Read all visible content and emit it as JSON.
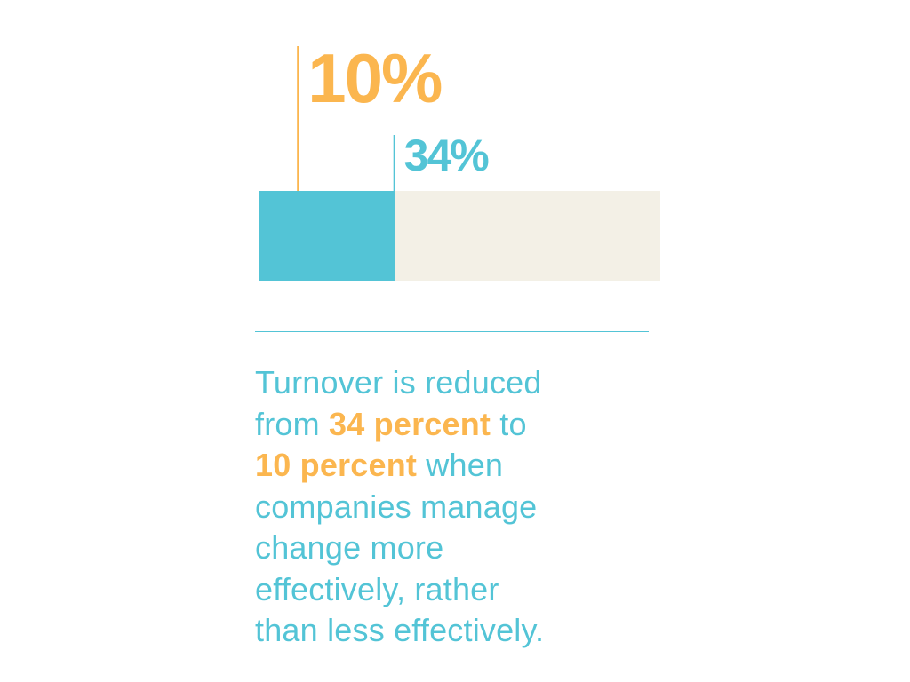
{
  "colors": {
    "orange": "#fbb64f",
    "teal": "#53c4d6",
    "track": "#f3f0e6",
    "background": "#ffffff"
  },
  "chart_data": {
    "type": "bar",
    "orientation": "horizontal-stacked",
    "xlim": [
      0,
      100
    ],
    "series": [
      {
        "value": 10,
        "label": "10%",
        "color": "#fbb64f"
      },
      {
        "value": 34,
        "label": "34%",
        "color": "#53c4d6"
      }
    ],
    "track_color": "#f3f0e6"
  },
  "caption": {
    "l1": "Turnover is reduced",
    "l2a": "from ",
    "l2b": "34 percent",
    "l2c": " to",
    "l3a": "10 percent",
    "l3b": " when",
    "l4": "companies manage",
    "l5": "change more",
    "l6": "effectively, rather",
    "l7": "than less effectively."
  }
}
